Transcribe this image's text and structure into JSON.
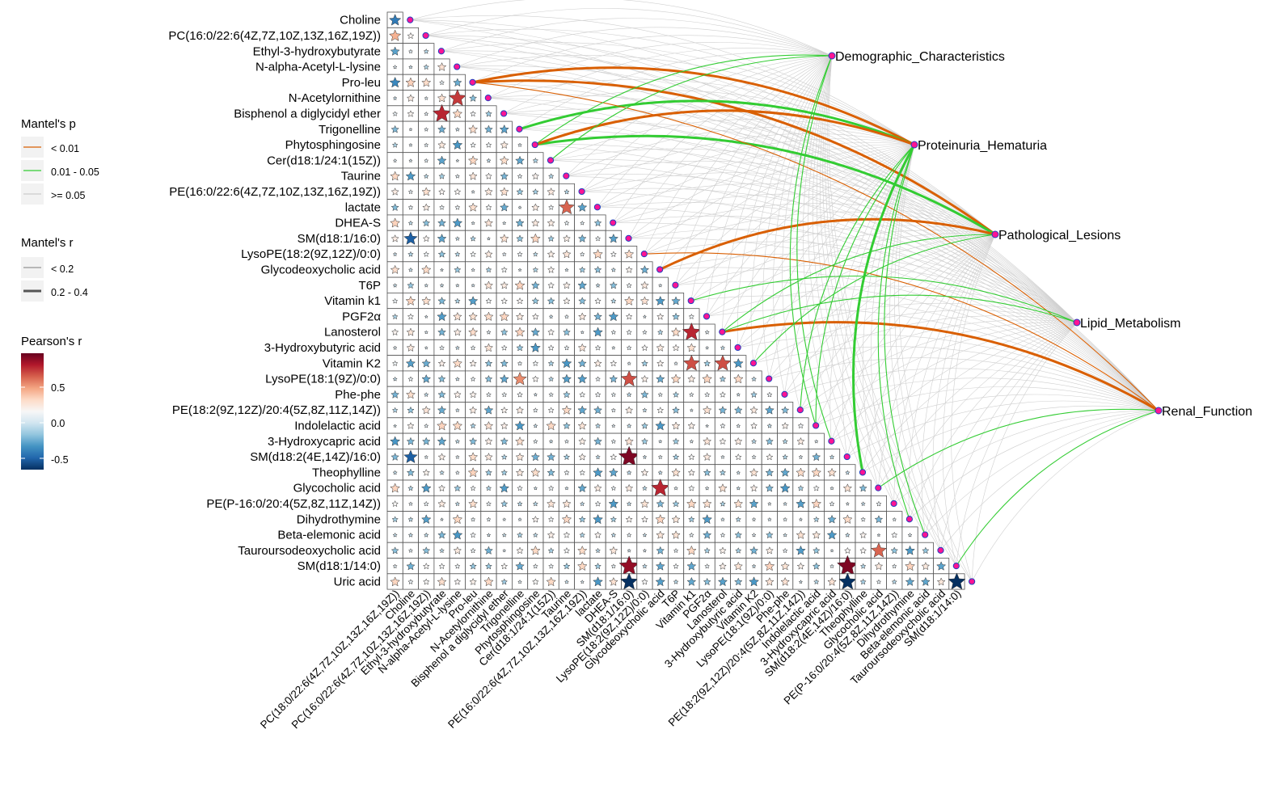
{
  "chart_data": {
    "type": "heatmap",
    "variables": [
      "Choline",
      "PC(16:0/22:6(4Z,7Z,10Z,13Z,16Z,19Z))",
      "Ethyl-3-hydroxybutyrate",
      "N-alpha-Acetyl-L-lysine",
      "Pro-leu",
      "N-Acetylornithine",
      "Bisphenol a diglycidyl ether",
      "Trigonelline",
      "Phytosphingosine",
      "Cer(d18:1/24:1(15Z))",
      "Taurine",
      "PE(16:0/22:6(4Z,7Z,10Z,13Z,16Z,19Z))",
      "lactate",
      "DHEA-S",
      "SM(d18:1/16:0)",
      "LysoPE(18:2(9Z,12Z)/0:0)",
      "Glycodeoxycholic acid",
      "T6P",
      "Vitamin k1",
      "PGF2α",
      "Lanosterol",
      "3-Hydroxybutyric acid",
      "Vitamin K2",
      "LysoPE(18:1(9Z)/0:0)",
      "Phe-phe",
      "PE(18:2(9Z,12Z)/20:4(5Z,8Z,11Z,14Z))",
      "Indolelactic acid",
      "3-Hydroxycapric acid",
      "SM(d18:2(4E,14Z)/16:0)",
      "Theophylline",
      "Glycocholic acid",
      "PE(P-16:0/20:4(5Z,8Z,11Z,14Z))",
      "Dihydrothymine",
      "Beta-elemonic acid",
      "Tauroursodeoxycholic acid",
      "SM(d18:1/14:0)",
      "Uric acid"
    ],
    "x_labels": [
      "PC(18:0/22:6(4Z,7Z,10Z,13Z,16Z,19Z))",
      "Choline",
      "PC(16:0/22:6(4Z,7Z,10Z,13Z,16Z,19Z))",
      "Ethyl-3-hydroxybutyrate",
      "N-alpha-Acetyl-L-lysine",
      "Pro-leu",
      "N-Acetylornithine",
      "Bisphenol a diglycidyl ether",
      "Trigonelline",
      "Phytosphingosine",
      "Cer(d18:1/24:1(15Z))",
      "Taurine",
      "PE(16:0/22:6(4Z,7Z,10Z,13Z,16Z,19Z))",
      "lactate",
      "DHEA-S",
      "SM(d18:1/16:0)",
      "LysoPE(18:2(9Z,12Z)/0:0)",
      "Glycodeoxycholic acid",
      "T6P",
      "Vitamin k1",
      "PGF2α",
      "Lanosterol",
      "3-Hydroxybutyric acid",
      "Vitamin K2",
      "LysoPE(18:1(9Z)/0:0)",
      "Phe-phe",
      "PE(18:2(9Z,12Z)/20:4(5Z,8Z,11Z,14Z))",
      "Indolelactic acid",
      "3-Hydroxycapric acid",
      "SM(d18:2(4E,14Z)/16:0)",
      "Theophylline",
      "Glycocholic acid",
      "PE(P-16:0/20:4(5Z,8Z,11Z,14Z))",
      "Dihydrothymine",
      "Beta-elemonic acid",
      "Tauroursodeoxycholic acid",
      "SM(d18:1/14:0)"
    ],
    "notable_correlations": [
      {
        "row": "Choline",
        "col": 0,
        "r": -0.45
      },
      {
        "row": "PC(16:0/22:6(4Z,7Z,10Z,13Z,16Z,19Z))",
        "col": 0,
        "r": 0.45
      },
      {
        "row": "Pro-leu",
        "col": 0,
        "r": -0.4
      },
      {
        "row": "Pro-leu",
        "col": 1,
        "r": 0.35
      },
      {
        "row": "N-Acetylornithine",
        "col": 4,
        "r": 0.75
      },
      {
        "row": "Bisphenol a diglycidyl ether",
        "col": 3,
        "r": 0.8
      },
      {
        "row": "lactate",
        "col": 11,
        "r": 0.65
      },
      {
        "row": "SM(d18:1/16:0)",
        "col": 1,
        "r": -0.55
      },
      {
        "row": "Lanosterol",
        "col": 19,
        "r": 0.8
      },
      {
        "row": "Vitamin K2",
        "col": 19,
        "r": 0.7
      },
      {
        "row": "Vitamin K2",
        "col": 21,
        "r": 0.7
      },
      {
        "row": "LysoPE(18:1(9Z)/0:0)",
        "col": 15,
        "r": 0.7
      },
      {
        "row": "LysoPE(18:1(9Z)/0:0)",
        "col": 8,
        "r": 0.55
      },
      {
        "row": "SM(d18:2(4E,14Z)/16:0)",
        "col": 15,
        "r": 0.95
      },
      {
        "row": "SM(d18:2(4E,14Z)/16:0)",
        "col": 1,
        "r": -0.55
      },
      {
        "row": "Glycocholic acid",
        "col": 17,
        "r": 0.8
      },
      {
        "row": "Tauroursodeoxycholic acid",
        "col": 31,
        "r": 0.65
      },
      {
        "row": "SM(d18:1/14:0)",
        "col": 15,
        "r": 0.9
      },
      {
        "row": "SM(d18:1/14:0)",
        "col": 29,
        "r": 0.95
      },
      {
        "row": "Uric acid",
        "col": 15,
        "r": -0.75
      },
      {
        "row": "Uric acid",
        "col": 29,
        "r": -0.75
      },
      {
        "row": "Uric acid",
        "col": 36,
        "r": -0.75
      }
    ],
    "environment_groups": [
      {
        "name": "Demographic_Characteristics"
      },
      {
        "name": "Proteinuria_Hematuria"
      },
      {
        "name": "Pathological_Lesions"
      },
      {
        "name": "Lipid_Metabolism"
      },
      {
        "name": "Renal_Function"
      }
    ],
    "mantel_links": [
      {
        "env": "Pathological_Lesions",
        "var": "Pro-leu",
        "p": "< 0.01",
        "r": "0.2 - 0.4"
      },
      {
        "env": "Proteinuria_Hematuria",
        "var": "Pro-leu",
        "p": "< 0.01",
        "r": "0.2 - 0.4"
      },
      {
        "env": "Proteinuria_Hematuria",
        "var": "Trigonelline",
        "p": "0.01 - 0.05",
        "r": "0.2 - 0.4"
      },
      {
        "env": "Pathological_Lesions",
        "var": "Phytosphingosine",
        "p": "0.01 - 0.05",
        "r": "0.2 - 0.4"
      },
      {
        "env": "Proteinuria_Hematuria",
        "var": "Phytosphingosine",
        "p": "< 0.01",
        "r": "0.2 - 0.4"
      },
      {
        "env": "Pathological_Lesions",
        "var": "Glycodeoxycholic acid",
        "p": "< 0.01",
        "r": "0.2 - 0.4"
      },
      {
        "env": "Renal_Function",
        "var": "Pro-leu",
        "p": "< 0.01",
        "r": "< 0.2"
      },
      {
        "env": "Renal_Function",
        "var": "Lanosterol",
        "p": "< 0.01",
        "r": "0.2 - 0.4"
      },
      {
        "env": "Renal_Function",
        "var": "LysoPE(18:2(9Z,12Z)/0:0)",
        "p": "< 0.01",
        "r": "< 0.2"
      },
      {
        "env": "Proteinuria_Hematuria",
        "var": "Theophylline",
        "p": "0.01 - 0.05",
        "r": "0.2 - 0.4"
      },
      {
        "env": "Proteinuria_Hematuria",
        "var": "Beta-elemonic acid",
        "p": "0.01 - 0.05",
        "r": "< 0.2"
      },
      {
        "env": "Proteinuria_Hematuria",
        "var": "Dihydrothymine",
        "p": "0.01 - 0.05",
        "r": "< 0.2"
      },
      {
        "env": "Proteinuria_Hematuria",
        "var": "PE(18:2(9Z,12Z)/20:4(5Z,8Z,11Z,14Z))",
        "p": "0.01 - 0.05",
        "r": "< 0.2"
      },
      {
        "env": "Proteinuria_Hematuria",
        "var": "Indolelactic acid",
        "p": "0.01 - 0.05",
        "r": "< 0.2"
      },
      {
        "env": "Pathological_Lesions",
        "var": "Vitamin K2",
        "p": "0.01 - 0.05",
        "r": "< 0.2"
      },
      {
        "env": "Pathological_Lesions",
        "var": "Lanosterol",
        "p": "0.01 - 0.05",
        "r": "< 0.2"
      },
      {
        "env": "Demographic_Characteristics",
        "var": "Phytosphingosine",
        "p": "0.01 - 0.05",
        "r": "< 0.2"
      },
      {
        "env": "Demographic_Characteristics",
        "var": "Cer(d18:1/24:1(15Z))",
        "p": "0.01 - 0.05",
        "r": "< 0.2"
      },
      {
        "env": "Demographic_Characteristics",
        "var": "Indolelactic acid",
        "p": "0.01 - 0.05",
        "r": "< 0.2"
      },
      {
        "env": "Demographic_Characteristics",
        "var": "3-Hydroxycapric acid",
        "p": "0.01 - 0.05",
        "r": "< 0.2"
      },
      {
        "env": "Lipid_Metabolism",
        "var": "Lanosterol",
        "p": "0.01 - 0.05",
        "r": "< 0.2"
      },
      {
        "env": "Lipid_Metabolism",
        "var": "Vitamin k1",
        "p": "0.01 - 0.05",
        "r": "< 0.2"
      },
      {
        "env": "Renal_Function",
        "var": "Glycocholic acid",
        "p": "0.01 - 0.05",
        "r": "< 0.2"
      },
      {
        "env": "Renal_Function",
        "var": "SM(d18:1/14:0)",
        "p": "0.01 - 0.05",
        "r": "< 0.2"
      }
    ],
    "legend": {
      "mantel_p_title": "Mantel's p",
      "mantel_p_items": [
        {
          "label": "< 0.01",
          "color": "#d95f02"
        },
        {
          "label": "0.01 - 0.05",
          "color": "#33cc33"
        },
        {
          "label": ">= 0.05",
          "color": "#cccccc"
        }
      ],
      "mantel_r_title": "Mantel's r",
      "mantel_r_items": [
        {
          "label": "< 0.2"
        },
        {
          "label": "0.2 - 0.4"
        }
      ],
      "pearson_title": "Pearson's r",
      "pearson_ticks": [
        "0.5",
        "0.0",
        "-0.5"
      ],
      "colorscale": [
        "#053061",
        "#2166ac",
        "#4393c3",
        "#92c5de",
        "#d1e5f0",
        "#f7f7f7",
        "#fddbc7",
        "#f4a582",
        "#d6604d",
        "#b2182b",
        "#67001f"
      ]
    }
  }
}
